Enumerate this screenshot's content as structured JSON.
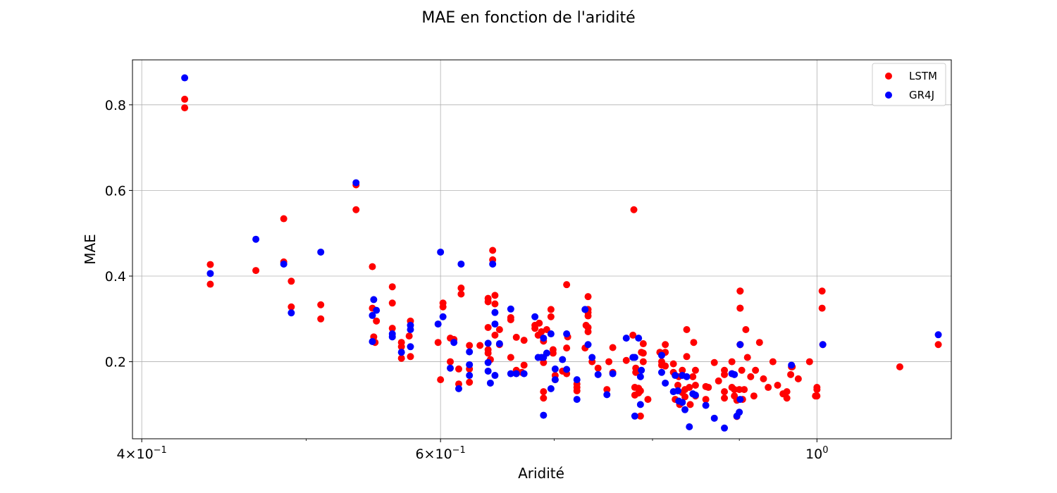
{
  "chart_data": {
    "type": "scatter",
    "title": "MAE en fonction de l'aridité",
    "xlabel": "Aridité",
    "ylabel": "MAE",
    "xscale": "log",
    "xlim": [
      0.395,
      1.2
    ],
    "ylim": [
      0.02,
      0.905
    ],
    "x_major_ticks": [
      {
        "value": 0.4,
        "base": "4×10",
        "exp": "−1"
      },
      {
        "value": 0.6,
        "base": "6×10",
        "exp": "−1"
      },
      {
        "value": 1.0,
        "base": "10",
        "exp": "0"
      }
    ],
    "x_minor_ticks": [
      0.5,
      0.7,
      0.8,
      0.9
    ],
    "y_ticks": [
      {
        "value": 0.2,
        "label": "0.2"
      },
      {
        "value": 0.4,
        "label": "0.4"
      },
      {
        "value": 0.6,
        "label": "0.6"
      },
      {
        "value": 0.8,
        "label": "0.8"
      }
    ],
    "grid": "major",
    "legend_position": "top-right",
    "series": [
      {
        "name": "LSTM",
        "color": "#ff0000",
        "points": [
          [
            0.424,
            0.813
          ],
          [
            0.424,
            0.793
          ],
          [
            0.439,
            0.427
          ],
          [
            0.439,
            0.381
          ],
          [
            0.467,
            0.413
          ],
          [
            0.485,
            0.534
          ],
          [
            0.485,
            0.433
          ],
          [
            0.49,
            0.388
          ],
          [
            0.49,
            0.328
          ],
          [
            0.51,
            0.333
          ],
          [
            0.51,
            0.3
          ],
          [
            0.535,
            0.555
          ],
          [
            0.535,
            0.613
          ],
          [
            0.547,
            0.422
          ],
          [
            0.547,
            0.325
          ],
          [
            0.548,
            0.258
          ],
          [
            0.549,
            0.245
          ],
          [
            0.55,
            0.295
          ],
          [
            0.562,
            0.375
          ],
          [
            0.562,
            0.337
          ],
          [
            0.562,
            0.278
          ],
          [
            0.569,
            0.245
          ],
          [
            0.569,
            0.235
          ],
          [
            0.569,
            0.208
          ],
          [
            0.575,
            0.26
          ],
          [
            0.576,
            0.212
          ],
          [
            0.576,
            0.295
          ],
          [
            0.598,
            0.245
          ],
          [
            0.6,
            0.158
          ],
          [
            0.602,
            0.337
          ],
          [
            0.602,
            0.328
          ],
          [
            0.608,
            0.255
          ],
          [
            0.608,
            0.2
          ],
          [
            0.611,
            0.252
          ],
          [
            0.615,
            0.183
          ],
          [
            0.615,
            0.148
          ],
          [
            0.617,
            0.372
          ],
          [
            0.617,
            0.358
          ],
          [
            0.624,
            0.238
          ],
          [
            0.624,
            0.183
          ],
          [
            0.624,
            0.152
          ],
          [
            0.633,
            0.238
          ],
          [
            0.64,
            0.348
          ],
          [
            0.64,
            0.34
          ],
          [
            0.64,
            0.28
          ],
          [
            0.64,
            0.228
          ],
          [
            0.64,
            0.22
          ],
          [
            0.642,
            0.205
          ],
          [
            0.644,
            0.46
          ],
          [
            0.644,
            0.438
          ],
          [
            0.646,
            0.355
          ],
          [
            0.646,
            0.335
          ],
          [
            0.646,
            0.262
          ],
          [
            0.65,
            0.275
          ],
          [
            0.65,
            0.24
          ],
          [
            0.66,
            0.303
          ],
          [
            0.66,
            0.298
          ],
          [
            0.66,
            0.21
          ],
          [
            0.665,
            0.257
          ],
          [
            0.665,
            0.18
          ],
          [
            0.67,
            0.175
          ],
          [
            0.672,
            0.25
          ],
          [
            0.672,
            0.192
          ],
          [
            0.682,
            0.285
          ],
          [
            0.682,
            0.278
          ],
          [
            0.685,
            0.262
          ],
          [
            0.686,
            0.29
          ],
          [
            0.688,
            0.27
          ],
          [
            0.69,
            0.248
          ],
          [
            0.69,
            0.198
          ],
          [
            0.69,
            0.13
          ],
          [
            0.69,
            0.115
          ],
          [
            0.693,
            0.275
          ],
          [
            0.697,
            0.322
          ],
          [
            0.697,
            0.305
          ],
          [
            0.699,
            0.228
          ],
          [
            0.699,
            0.22
          ],
          [
            0.701,
            0.168
          ],
          [
            0.701,
            0.158
          ],
          [
            0.708,
            0.178
          ],
          [
            0.712,
            0.172
          ],
          [
            0.712,
            0.232
          ],
          [
            0.712,
            0.38
          ],
          [
            0.713,
            0.258
          ],
          [
            0.722,
            0.148
          ],
          [
            0.722,
            0.14
          ],
          [
            0.722,
            0.132
          ],
          [
            0.73,
            0.232
          ],
          [
            0.731,
            0.285
          ],
          [
            0.733,
            0.352
          ],
          [
            0.733,
            0.322
          ],
          [
            0.733,
            0.315
          ],
          [
            0.733,
            0.307
          ],
          [
            0.733,
            0.28
          ],
          [
            0.733,
            0.27
          ],
          [
            0.737,
            0.2
          ],
          [
            0.743,
            0.185
          ],
          [
            0.752,
            0.135
          ],
          [
            0.754,
            0.2
          ],
          [
            0.758,
            0.175
          ],
          [
            0.758,
            0.233
          ],
          [
            0.772,
            0.203
          ],
          [
            0.779,
            0.262
          ],
          [
            0.78,
            0.555
          ],
          [
            0.781,
            0.14
          ],
          [
            0.781,
            0.122
          ],
          [
            0.782,
            0.175
          ],
          [
            0.782,
            0.185
          ],
          [
            0.785,
            0.138
          ],
          [
            0.785,
            0.127
          ],
          [
            0.787,
            0.073
          ],
          [
            0.787,
            0.132
          ],
          [
            0.788,
            0.222
          ],
          [
            0.79,
            0.2
          ],
          [
            0.79,
            0.242
          ],
          [
            0.79,
            0.22
          ],
          [
            0.795,
            0.112
          ],
          [
            0.808,
            0.222
          ],
          [
            0.81,
            0.2
          ],
          [
            0.81,
            0.192
          ],
          [
            0.814,
            0.19
          ],
          [
            0.814,
            0.24
          ],
          [
            0.814,
            0.222
          ],
          [
            0.823,
            0.175
          ],
          [
            0.823,
            0.195
          ],
          [
            0.825,
            0.112
          ],
          [
            0.828,
            0.145
          ],
          [
            0.829,
            0.165
          ],
          [
            0.83,
            0.1
          ],
          [
            0.833,
            0.18
          ],
          [
            0.833,
            0.128
          ],
          [
            0.836,
            0.135
          ],
          [
            0.836,
            0.118
          ],
          [
            0.838,
            0.212
          ],
          [
            0.838,
            0.275
          ],
          [
            0.841,
            0.14
          ],
          [
            0.842,
            0.1
          ],
          [
            0.845,
            0.165
          ],
          [
            0.846,
            0.245
          ],
          [
            0.848,
            0.145
          ],
          [
            0.848,
            0.18
          ],
          [
            0.848,
            0.12
          ],
          [
            0.86,
            0.142
          ],
          [
            0.86,
            0.112
          ],
          [
            0.863,
            0.14
          ],
          [
            0.87,
            0.198
          ],
          [
            0.875,
            0.155
          ],
          [
            0.882,
            0.18
          ],
          [
            0.882,
            0.17
          ],
          [
            0.882,
            0.13
          ],
          [
            0.882,
            0.115
          ],
          [
            0.891,
            0.2
          ],
          [
            0.891,
            0.172
          ],
          [
            0.891,
            0.14
          ],
          [
            0.894,
            0.135
          ],
          [
            0.894,
            0.12
          ],
          [
            0.897,
            0.072
          ],
          [
            0.897,
            0.11
          ],
          [
            0.9,
            0.135
          ],
          [
            0.901,
            0.365
          ],
          [
            0.901,
            0.365
          ],
          [
            0.901,
            0.325
          ],
          [
            0.901,
            0.325
          ],
          [
            0.901,
            0.24
          ],
          [
            0.901,
            0.24
          ],
          [
            0.901,
            0.24
          ],
          [
            0.966,
            0.188
          ],
          [
            0.967,
            0.188
          ],
          [
            1.0,
            0.14
          ],
          [
            0.998,
            0.12
          ],
          [
            0.99,
            0.2
          ],
          [
            0.975,
            0.16
          ],
          [
            0.965,
            0.17
          ],
          [
            0.96,
            0.13
          ],
          [
            0.96,
            0.115
          ],
          [
            0.955,
            0.125
          ],
          [
            0.948,
            0.145
          ],
          [
            0.942,
            0.2
          ],
          [
            0.936,
            0.14
          ],
          [
            0.93,
            0.16
          ],
          [
            0.925,
            0.245
          ],
          [
            0.92,
            0.18
          ],
          [
            0.918,
            0.12
          ],
          [
            0.914,
            0.165
          ],
          [
            0.91,
            0.21
          ],
          [
            0.908,
            0.275
          ],
          [
            0.906,
            0.135
          ],
          [
            0.904,
            0.112
          ],
          [
            0.903,
            0.18
          ],
          [
            1.007,
            0.365
          ],
          [
            1.007,
            0.325
          ],
          [
            1.008,
            0.24
          ],
          [
            1.0,
            0.135
          ],
          [
            1.0,
            0.12
          ],
          [
            1.119,
            0.188
          ],
          [
            1.179,
            0.24
          ]
        ]
      },
      {
        "name": "GR4J",
        "color": "#0000ff",
        "points": [
          [
            0.424,
            0.863
          ],
          [
            0.439,
            0.406
          ],
          [
            0.467,
            0.486
          ],
          [
            0.485,
            0.428
          ],
          [
            0.49,
            0.314
          ],
          [
            0.51,
            0.456
          ],
          [
            0.535,
            0.618
          ],
          [
            0.547,
            0.308
          ],
          [
            0.547,
            0.247
          ],
          [
            0.548,
            0.345
          ],
          [
            0.55,
            0.32
          ],
          [
            0.562,
            0.265
          ],
          [
            0.562,
            0.258
          ],
          [
            0.569,
            0.222
          ],
          [
            0.576,
            0.235
          ],
          [
            0.576,
            0.285
          ],
          [
            0.576,
            0.275
          ],
          [
            0.598,
            0.288
          ],
          [
            0.6,
            0.456
          ],
          [
            0.602,
            0.305
          ],
          [
            0.608,
            0.185
          ],
          [
            0.611,
            0.245
          ],
          [
            0.615,
            0.137
          ],
          [
            0.617,
            0.428
          ],
          [
            0.624,
            0.223
          ],
          [
            0.624,
            0.193
          ],
          [
            0.624,
            0.168
          ],
          [
            0.64,
            0.243
          ],
          [
            0.64,
            0.198
          ],
          [
            0.64,
            0.178
          ],
          [
            0.642,
            0.15
          ],
          [
            0.644,
            0.428
          ],
          [
            0.646,
            0.315
          ],
          [
            0.646,
            0.288
          ],
          [
            0.646,
            0.168
          ],
          [
            0.65,
            0.242
          ],
          [
            0.66,
            0.323
          ],
          [
            0.66,
            0.172
          ],
          [
            0.665,
            0.172
          ],
          [
            0.672,
            0.172
          ],
          [
            0.682,
            0.305
          ],
          [
            0.685,
            0.21
          ],
          [
            0.688,
            0.21
          ],
          [
            0.69,
            0.255
          ],
          [
            0.69,
            0.21
          ],
          [
            0.69,
            0.075
          ],
          [
            0.693,
            0.22
          ],
          [
            0.697,
            0.265
          ],
          [
            0.697,
            0.137
          ],
          [
            0.701,
            0.183
          ],
          [
            0.701,
            0.158
          ],
          [
            0.708,
            0.205
          ],
          [
            0.712,
            0.265
          ],
          [
            0.712,
            0.182
          ],
          [
            0.722,
            0.158
          ],
          [
            0.722,
            0.112
          ],
          [
            0.73,
            0.322
          ],
          [
            0.733,
            0.24
          ],
          [
            0.737,
            0.21
          ],
          [
            0.743,
            0.17
          ],
          [
            0.752,
            0.123
          ],
          [
            0.758,
            0.172
          ],
          [
            0.772,
            0.255
          ],
          [
            0.779,
            0.21
          ],
          [
            0.781,
            0.073
          ],
          [
            0.781,
            0.21
          ],
          [
            0.785,
            0.255
          ],
          [
            0.787,
            0.1
          ],
          [
            0.787,
            0.165
          ],
          [
            0.788,
            0.18
          ],
          [
            0.81,
            0.215
          ],
          [
            0.81,
            0.175
          ],
          [
            0.814,
            0.15
          ],
          [
            0.823,
            0.13
          ],
          [
            0.825,
            0.168
          ],
          [
            0.828,
            0.132
          ],
          [
            0.829,
            0.108
          ],
          [
            0.833,
            0.168
          ],
          [
            0.833,
            0.105
          ],
          [
            0.836,
            0.088
          ],
          [
            0.838,
            0.165
          ],
          [
            0.841,
            0.048
          ],
          [
            0.845,
            0.125
          ],
          [
            0.848,
            0.122
          ],
          [
            0.86,
            0.098
          ],
          [
            0.87,
            0.068
          ],
          [
            0.882,
            0.045
          ],
          [
            0.891,
            0.172
          ],
          [
            0.894,
            0.17
          ],
          [
            0.897,
            0.073
          ],
          [
            0.9,
            0.082
          ],
          [
            0.901,
            0.112
          ],
          [
            0.966,
            0.192
          ],
          [
            0.901,
            0.24
          ],
          [
            1.008,
            0.24
          ],
          [
            1.179,
            0.263
          ]
        ]
      }
    ],
    "legend": [
      "LSTM",
      "GR4J"
    ]
  }
}
